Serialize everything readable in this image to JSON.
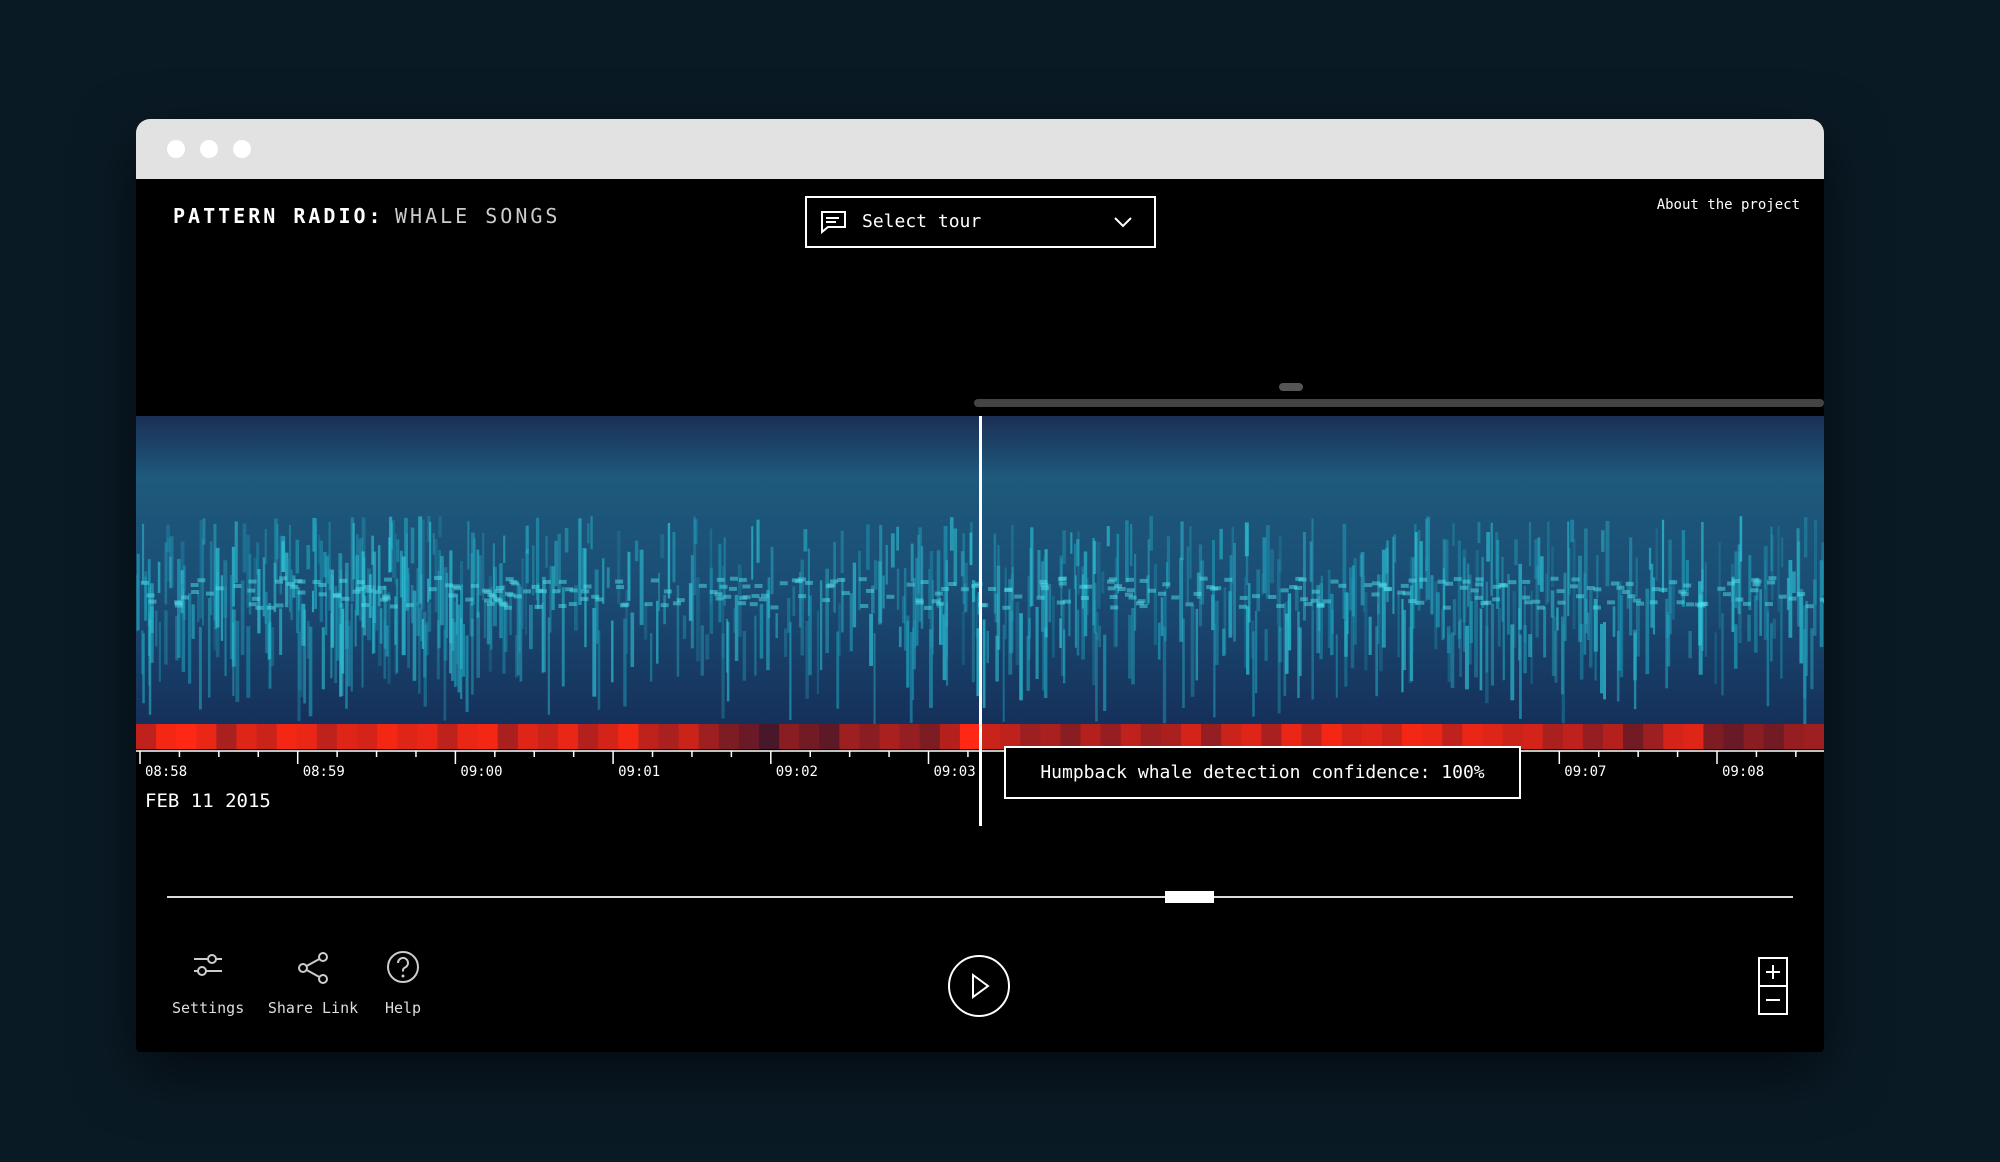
{
  "header": {
    "title": "PATTERN RADIO:",
    "subtitle": "WHALE SONGS",
    "tour_select": "Select tour",
    "about_link": "About the project"
  },
  "timeline": {
    "time_labels": [
      "08:58",
      "08:59",
      "09:00",
      "09:01",
      "09:02",
      "09:03",
      "09:07",
      "09:08"
    ],
    "time_label_slots": [
      0,
      1,
      2,
      3,
      4,
      5,
      9,
      10
    ],
    "date": "FEB 11 2015",
    "tooltip": "Humpback whale detection confidence: 100%",
    "detection_confidence": [
      70,
      95,
      100,
      90,
      60,
      85,
      75,
      95,
      90,
      70,
      85,
      80,
      95,
      85,
      90,
      70,
      90,
      95,
      60,
      85,
      75,
      90,
      65,
      80,
      95,
      70,
      60,
      75,
      55,
      40,
      30,
      15,
      45,
      35,
      25,
      55,
      45,
      60,
      50,
      40,
      65,
      100,
      75,
      70,
      55,
      60,
      45,
      65,
      50,
      70,
      55,
      60,
      80,
      50,
      75,
      85,
      60,
      90,
      70,
      95,
      80,
      85,
      75,
      95,
      90,
      70,
      90,
      85,
      75,
      80,
      60,
      70,
      50,
      65,
      35,
      55,
      80,
      85,
      40,
      30,
      45,
      35,
      50,
      55
    ]
  },
  "controls": {
    "settings": "Settings",
    "share": "Share Link",
    "help": "Help"
  }
}
